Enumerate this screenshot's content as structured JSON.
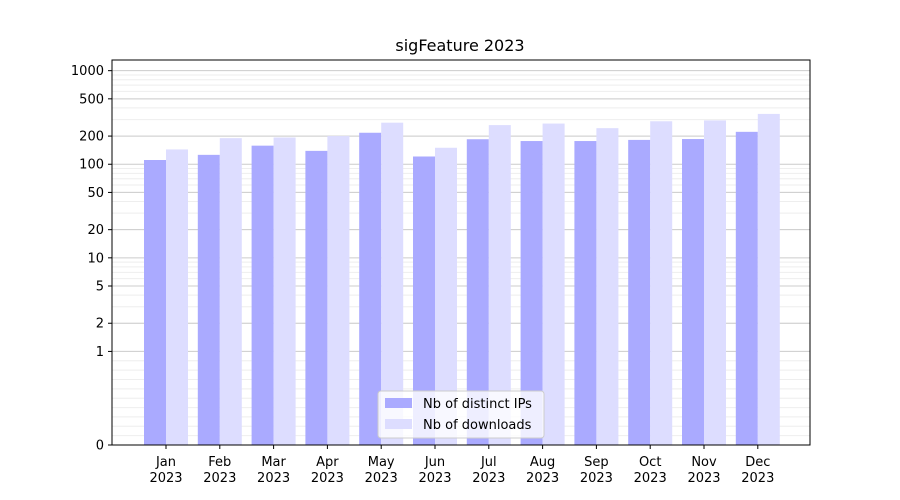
{
  "chart_data": {
    "type": "bar",
    "title": "sigFeature 2023",
    "xlabel": "",
    "ylabel": "",
    "yscale": "symlog",
    "ylim": [
      0,
      1300
    ],
    "yticks": [
      0,
      1,
      2,
      5,
      10,
      20,
      50,
      100,
      200,
      500,
      1000
    ],
    "ytick_labels": [
      "0",
      "1",
      "2",
      "5",
      "10",
      "20",
      "50",
      "100",
      "200",
      "500",
      "1000"
    ],
    "grid": true,
    "legend_position": "lower center",
    "categories": [
      {
        "month": "Jan",
        "year": "2023"
      },
      {
        "month": "Feb",
        "year": "2023"
      },
      {
        "month": "Mar",
        "year": "2023"
      },
      {
        "month": "Apr",
        "year": "2023"
      },
      {
        "month": "May",
        "year": "2023"
      },
      {
        "month": "Jun",
        "year": "2023"
      },
      {
        "month": "Jul",
        "year": "2023"
      },
      {
        "month": "Aug",
        "year": "2023"
      },
      {
        "month": "Sep",
        "year": "2023"
      },
      {
        "month": "Oct",
        "year": "2023"
      },
      {
        "month": "Nov",
        "year": "2023"
      },
      {
        "month": "Dec",
        "year": "2023"
      }
    ],
    "series": [
      {
        "name": "Nb of distinct IPs",
        "color": "#aaaaff",
        "values": [
          111,
          126,
          158,
          139,
          217,
          121,
          185,
          177,
          177,
          182,
          186,
          222
        ]
      },
      {
        "name": "Nb of downloads",
        "color": "#ddddff",
        "values": [
          144,
          190,
          193,
          200,
          278,
          150,
          262,
          272,
          243,
          288,
          294,
          345
        ]
      }
    ]
  }
}
